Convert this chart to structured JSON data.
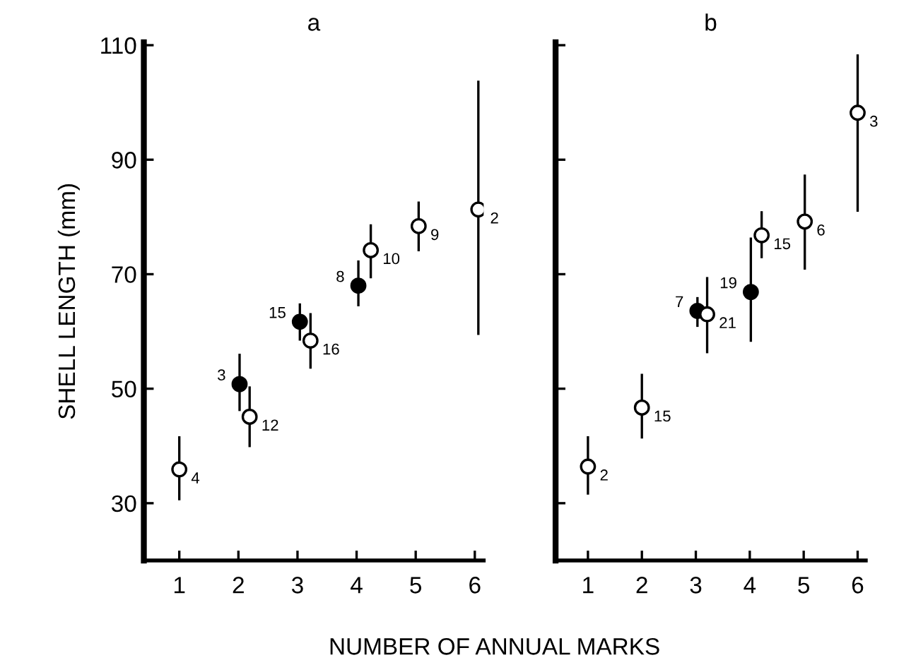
{
  "chart_data": [
    {
      "type": "scatter",
      "title": "a",
      "ylabel": "SHELL LENGTH (mm)",
      "xlabel": "NUMBER OF ANNUAL MARKS",
      "xlim": [
        0.4,
        6.15
      ],
      "xticks": [
        1,
        2,
        3,
        4,
        5,
        6
      ],
      "ylim": [
        20,
        110.5
      ],
      "yticks": [
        30,
        50,
        70,
        90,
        110
      ],
      "marker": "circle",
      "grid": false,
      "legend": false,
      "series": [
        {
          "color": "#000000",
          "x": [
            2.02,
            3.04,
            4.03
          ],
          "values": [
            50.8,
            61.7,
            68.0
          ],
          "errors": [
            [
              46.3,
              55.9
            ],
            [
              58.6,
              64.7
            ],
            [
              64.6,
              72.2
            ]
          ]
        },
        {
          "color": "#ffffff",
          "x": [
            1,
            2.19,
            3.22,
            4.24,
            5.05,
            6.06
          ],
          "values": [
            35.9,
            45.1,
            58.4,
            74.2,
            78.4,
            81.3
          ],
          "errors": [
            [
              30.7,
              41.5
            ],
            [
              40.0,
              50.2
            ],
            [
              53.7,
              63.0
            ],
            [
              69.5,
              78.5
            ],
            [
              74.2,
              82.5
            ],
            [
              59.6,
              103.6
            ]
          ]
        }
      ],
      "annotations": [
        {
          "text": "3",
          "x": 2.02,
          "y": 50.8
        },
        {
          "text": "15",
          "x": 3.04,
          "y": 61.7
        },
        {
          "text": "8",
          "x": 4.03,
          "y": 68.0
        },
        {
          "text": "4",
          "x": 1,
          "y": 35.9
        },
        {
          "text": "12",
          "x": 2.19,
          "y": 45.1
        },
        {
          "text": "16",
          "x": 3.22,
          "y": 58.4
        },
        {
          "text": "10",
          "x": 4.24,
          "y": 74.2
        },
        {
          "text": "9",
          "x": 5.05,
          "y": 78.4
        },
        {
          "text": "2",
          "x": 6.06,
          "y": 81.3
        }
      ]
    },
    {
      "type": "scatter",
      "title": "b",
      "xlim": [
        0.4,
        6.15
      ],
      "xticks": [
        1,
        2,
        3,
        4,
        5,
        6
      ],
      "ylim": [
        20,
        110.5
      ],
      "yticks": [
        30,
        50,
        70,
        90,
        110
      ],
      "tick_labels": "x",
      "marker": "circle",
      "grid": false,
      "legend": false,
      "series": [
        {
          "color": "#000000",
          "x": [
            3.03,
            4.02
          ],
          "values": [
            63.6,
            66.9
          ],
          "errors": [
            [
              61.0,
              65.8
            ],
            [
              58.4,
              76.2
            ]
          ]
        },
        {
          "color": "#ffffff",
          "x": [
            1,
            2,
            3.21,
            4.22,
            5.02,
            6
          ],
          "values": [
            36.4,
            46.7,
            63.0,
            76.8,
            79.2,
            98.2
          ],
          "errors": [
            [
              31.7,
              41.5
            ],
            [
              41.5,
              52.4
            ],
            [
              56.4,
              69.3
            ],
            [
              73.0,
              80.8
            ],
            [
              71.0,
              87.2
            ],
            [
              81.1,
              108.2
            ]
          ]
        }
      ],
      "annotations": [
        {
          "text": "7",
          "x": 3.03,
          "y": 63.6
        },
        {
          "text": "19",
          "x": 4.02,
          "y": 66.9
        },
        {
          "text": "2",
          "x": 1,
          "y": 36.4
        },
        {
          "text": "15",
          "x": 2,
          "y": 46.7
        },
        {
          "text": "21",
          "x": 3.21,
          "y": 63.0
        },
        {
          "text": "15",
          "x": 4.22,
          "y": 76.8
        },
        {
          "text": "6",
          "x": 5.02,
          "y": 79.2
        },
        {
          "text": "3",
          "x": 6,
          "y": 98.2
        }
      ]
    }
  ]
}
